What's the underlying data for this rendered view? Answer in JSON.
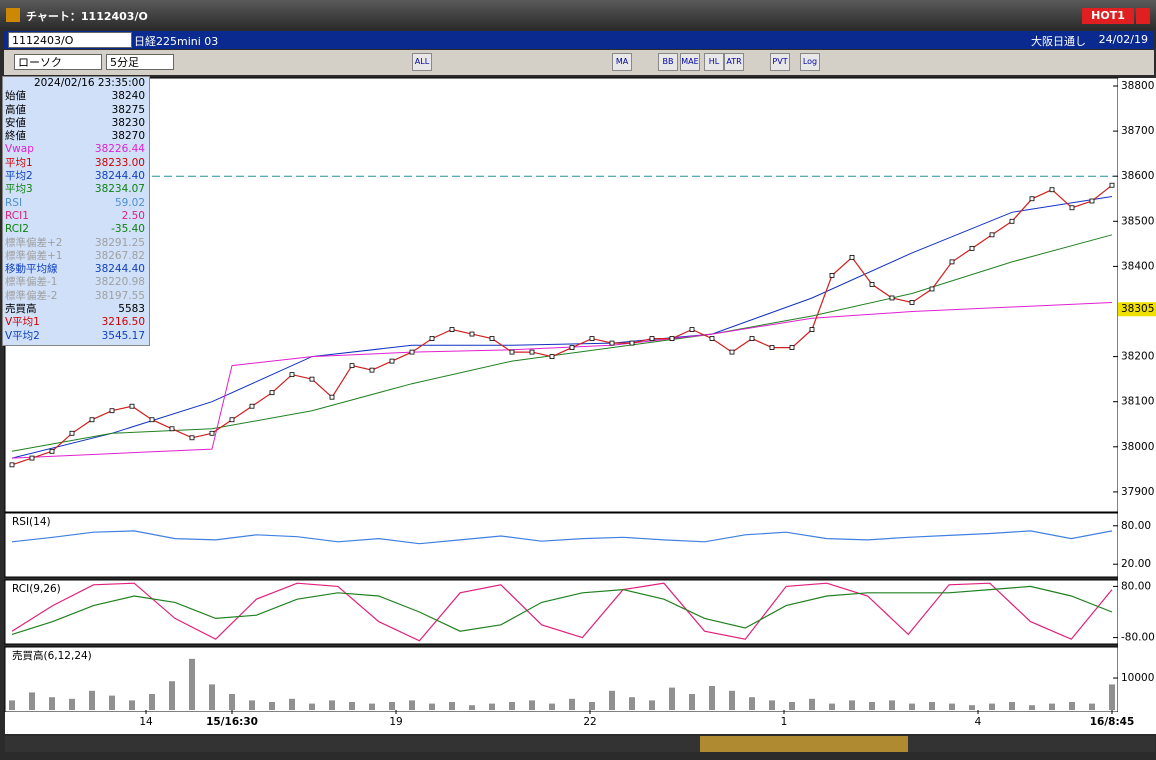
{
  "window": {
    "title": "チャート：1112403/O",
    "badge": "HOT1"
  },
  "header": {
    "symbol": "1112403/O",
    "name": "日経225mini 03",
    "exchange": "大阪日通し",
    "date": "24/02/19"
  },
  "toolbar": {
    "chart_type": "ローソク",
    "timeframe": "5分足",
    "buttons": [
      "ALL",
      "MA",
      "BB",
      "MAE",
      "HL",
      "ATR",
      "PVT",
      "Log"
    ]
  },
  "info_panel": {
    "datetime": "2024/02/16 23:35:00",
    "rows": [
      {
        "label": "始値",
        "value": "38240",
        "color": "#000000"
      },
      {
        "label": "高値",
        "value": "38275",
        "color": "#000000"
      },
      {
        "label": "安値",
        "value": "38230",
        "color": "#000000"
      },
      {
        "label": "終値",
        "value": "38270",
        "color": "#000000"
      },
      {
        "label": "Vwap",
        "value": "38226.44",
        "color": "#e020d0"
      },
      {
        "label": "平均1",
        "value": "38233.00",
        "color": "#d00000"
      },
      {
        "label": "平均2",
        "value": "38244.40",
        "color": "#1040c0"
      },
      {
        "label": "平均3",
        "value": "38234.07",
        "color": "#108010"
      },
      {
        "label": "RSI",
        "value": "59.02",
        "color": "#5090d0"
      },
      {
        "label": "RCI1",
        "value": "2.50",
        "color": "#e0207a"
      },
      {
        "label": "RCI2",
        "value": "-35.40",
        "color": "#108010"
      },
      {
        "label": "標準偏差+2",
        "value": "38291.25",
        "color": "#a0a0a0"
      },
      {
        "label": "標準偏差+1",
        "value": "38267.82",
        "color": "#a0a0a0"
      },
      {
        "label": "移動平均線",
        "value": "38244.40",
        "color": "#1040c0"
      },
      {
        "label": "標準偏差-1",
        "value": "38220.98",
        "color": "#a0a0a0"
      },
      {
        "label": "標準偏差-2",
        "value": "38197.55",
        "color": "#a0a0a0"
      },
      {
        "label": "売買高",
        "value": "5583",
        "color": "#000000"
      },
      {
        "label": "V平均1",
        "value": "3216.50",
        "color": "#d00000"
      },
      {
        "label": "V平均2",
        "value": "3545.17",
        "color": "#1040c0"
      }
    ]
  },
  "chart_data": [
    {
      "type": "line",
      "color": "#d02020",
      "values": [
        37960,
        37975,
        37990,
        38030,
        38060,
        38080,
        38090,
        38060,
        38040,
        38020,
        38030,
        38060,
        38090,
        38120,
        38160,
        38150,
        38110,
        38180,
        38170,
        38190,
        38210,
        38240,
        38260,
        38250,
        38240,
        38210,
        38210,
        38200,
        38220,
        38240,
        38230,
        38230,
        38240,
        38240,
        38260,
        38240,
        38210,
        38240,
        38220,
        38220,
        38260,
        38380,
        38420,
        38360,
        38330,
        38320,
        38350,
        38410,
        38440,
        38470,
        38500,
        38550,
        38570,
        38530,
        38545,
        38580
      ],
      "overlays": [
        {
          "color": "#1030c0",
          "x": [
            0,
            5,
            10,
            15,
            20,
            25,
            30,
            35,
            40,
            45,
            50,
            55
          ],
          "values": [
            37975,
            38030,
            38100,
            38200,
            38225,
            38225,
            38230,
            38250,
            38330,
            38430,
            38520,
            38555
          ]
        },
        {
          "color": "#208020",
          "x": [
            0,
            5,
            10,
            15,
            20,
            25,
            30,
            35,
            40,
            45,
            50,
            55
          ],
          "values": [
            37990,
            38030,
            38040,
            38080,
            38140,
            38190,
            38220,
            38250,
            38290,
            38340,
            38410,
            38470
          ]
        },
        {
          "color": "#e020d0",
          "x": [
            0,
            5,
            10,
            11,
            15,
            20,
            25,
            30,
            35,
            40,
            45,
            50,
            55
          ],
          "values": [
            37975,
            37985,
            37995,
            38180,
            38200,
            38210,
            38215,
            38225,
            38250,
            38285,
            38300,
            38310,
            38320
          ]
        }
      ],
      "ylim": [
        37885,
        38808
      ],
      "yticks": [
        38800,
        38700,
        38600,
        38500,
        38400,
        38200,
        38100,
        38000,
        37900
      ],
      "marker_value": 38305,
      "reference_line": 38600
    },
    {
      "type": "line",
      "title": "RSI(14)",
      "color": "#4080e0",
      "values": [
        55,
        62,
        70,
        72,
        60,
        58,
        66,
        63,
        55,
        60,
        52,
        58,
        64,
        56,
        60,
        62,
        58,
        55,
        66,
        70,
        60,
        58,
        62,
        65,
        68,
        72,
        60,
        72
      ],
      "ylim": [
        0,
        100
      ],
      "yticks": [
        {
          "value": 80,
          "label": "80.00"
        },
        {
          "value": 20,
          "label": "20.00"
        }
      ]
    },
    {
      "type": "line",
      "title": "RCI(9,26)",
      "series": [
        {
          "color": "#e0207a",
          "values": [
            -60,
            20,
            85,
            90,
            -20,
            -85,
            40,
            90,
            80,
            -30,
            -90,
            60,
            85,
            -40,
            -80,
            70,
            90,
            -60,
            -85,
            80,
            90,
            50,
            -70,
            85,
            90,
            -30,
            -85,
            70
          ]
        },
        {
          "color": "#208020",
          "values": [
            -70,
            -30,
            20,
            50,
            30,
            -20,
            -10,
            40,
            60,
            50,
            0,
            -60,
            -40,
            30,
            60,
            70,
            40,
            -20,
            -50,
            20,
            50,
            60,
            60,
            60,
            70,
            80,
            50,
            0
          ]
        }
      ],
      "ylim": [
        -100,
        100
      ],
      "yticks": [
        {
          "value": 80,
          "label": "80.00"
        },
        {
          "value": -80,
          "label": "-80.00"
        }
      ]
    },
    {
      "type": "bar",
      "title": "売買高(6,12,24)",
      "color": "#909090",
      "values": [
        3000,
        5500,
        4000,
        3500,
        6000,
        4500,
        3000,
        5000,
        9000,
        16000,
        8000,
        5000,
        3000,
        2500,
        3500,
        2000,
        3000,
        2500,
        2000,
        2500,
        3000,
        2000,
        2500,
        1500,
        2000,
        2500,
        3000,
        2000,
        3500,
        2500,
        6000,
        4000,
        3000,
        7000,
        5000,
        7500,
        6000,
        4000,
        3000,
        2500,
        3500,
        2000,
        3000,
        2500,
        3000,
        2000,
        2500,
        2000,
        1500,
        2000,
        2500,
        1500,
        2000,
        2500,
        2000,
        8000
      ],
      "ylim": [
        0,
        19700
      ],
      "yticks": [
        10000
      ],
      "xticks": [
        {
          "value": 6.7,
          "label": "14"
        },
        {
          "value": 11,
          "label": "15/16:30"
        },
        {
          "value": 19.2,
          "label": "19"
        },
        {
          "value": 28.9,
          "label": "22"
        },
        {
          "value": 38.6,
          "label": "1"
        },
        {
          "value": 48.3,
          "label": "4"
        },
        {
          "value": 55,
          "label": "16/8:45"
        }
      ]
    }
  ]
}
